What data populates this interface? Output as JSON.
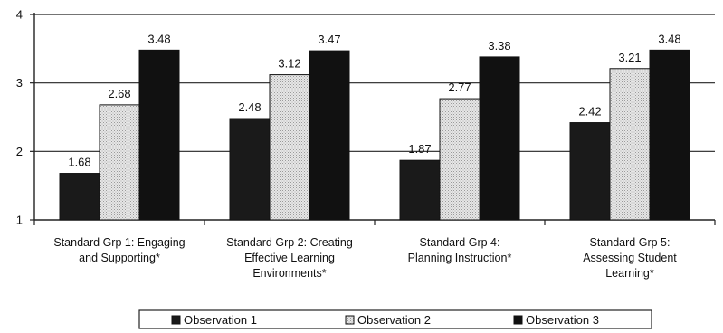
{
  "chart_data": {
    "type": "bar",
    "title": "",
    "xlabel": "",
    "ylabel": "",
    "ylim": [
      1,
      4
    ],
    "yticks": [
      1,
      2,
      3,
      4
    ],
    "grid": true,
    "legend_position": "bottom",
    "categories": [
      [
        "Standard Grp 1: Engaging",
        "and Supporting*"
      ],
      [
        "Standard Grp 2: Creating",
        "Effective Learning",
        "Environments*"
      ],
      [
        "Standard Grp 4:",
        "Planning Instruction*"
      ],
      [
        "Standard Grp 5:",
        "Assessing Student",
        "Learning*"
      ]
    ],
    "series": [
      {
        "name": "Observation 1",
        "values": [
          1.68,
          2.48,
          1.87,
          2.42
        ],
        "labels": [
          "1.68",
          "2.48",
          "1.87",
          "2.42"
        ],
        "color": "#1a1a1a",
        "pattern": "solid"
      },
      {
        "name": "Observation 2",
        "values": [
          2.68,
          3.12,
          2.77,
          3.21
        ],
        "labels": [
          "2.68",
          "3.12",
          "2.77",
          "3.21"
        ],
        "color": "#d9d9d9",
        "pattern": "dotted"
      },
      {
        "name": "Observation 3",
        "values": [
          3.48,
          3.47,
          3.38,
          3.48
        ],
        "labels": [
          "3.48",
          "3.47",
          "3.38",
          "3.48"
        ],
        "color": "#111111",
        "pattern": "solid"
      }
    ]
  }
}
